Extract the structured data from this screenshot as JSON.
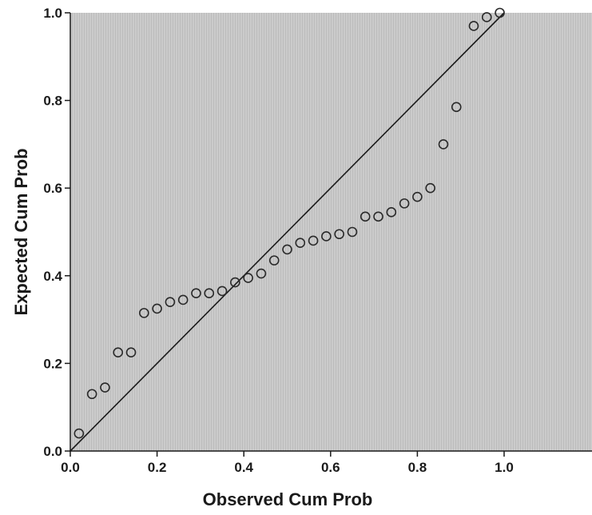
{
  "chart_data": {
    "type": "scatter",
    "title": "",
    "xlabel": "Observed Cum Prob",
    "ylabel": "Expected Cum Prob",
    "xlim": [
      0.0,
      1.2
    ],
    "ylim": [
      0.0,
      1.0
    ],
    "xticks": [
      0.0,
      0.2,
      0.4,
      0.6,
      0.8,
      1.0
    ],
    "yticks": [
      0.0,
      0.2,
      0.4,
      0.6,
      0.8,
      1.0
    ],
    "xtick_labels": [
      "0.0",
      "0.2",
      "0.4",
      "0.6",
      "0.8",
      "1.0"
    ],
    "ytick_labels": [
      "0.0",
      "0.2",
      "0.4",
      "0.6",
      "0.8",
      "1.0"
    ],
    "reference_line": [
      [
        0.0,
        0.0
      ],
      [
        1.0,
        1.0
      ]
    ],
    "grid": false,
    "background_color": "#c8c8c8",
    "marker_color": "#2a2a2a",
    "series": [
      {
        "x": [
          0.02,
          0.05,
          0.08,
          0.11,
          0.14,
          0.17,
          0.2,
          0.23,
          0.26,
          0.29,
          0.32,
          0.35,
          0.38,
          0.41,
          0.44,
          0.47,
          0.5,
          0.53,
          0.56,
          0.59,
          0.62,
          0.65,
          0.68,
          0.71,
          0.74,
          0.77,
          0.8,
          0.83,
          0.86,
          0.89,
          0.93,
          0.96,
          0.99
        ],
        "y": [
          0.04,
          0.13,
          0.145,
          0.225,
          0.225,
          0.315,
          0.325,
          0.34,
          0.345,
          0.36,
          0.36,
          0.365,
          0.385,
          0.395,
          0.405,
          0.435,
          0.46,
          0.475,
          0.48,
          0.49,
          0.495,
          0.5,
          0.535,
          0.535,
          0.545,
          0.565,
          0.58,
          0.6,
          0.7,
          0.785,
          0.97,
          0.99,
          1.0
        ]
      }
    ]
  }
}
